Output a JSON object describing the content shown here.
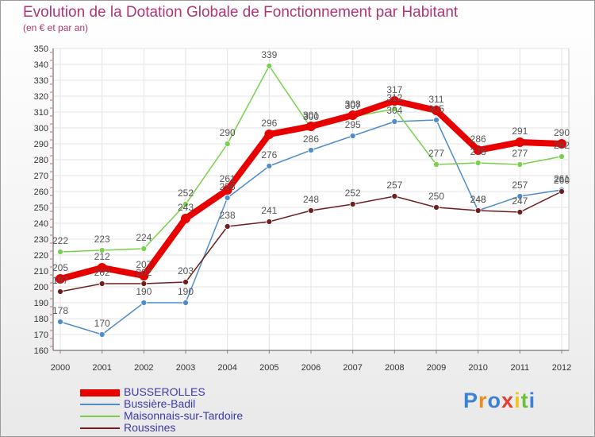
{
  "chart_data": {
    "type": "line",
    "title": "Evolution de la Dotation Globale de Fonctionnement par Habitant",
    "subtitle": "(en € et par an)",
    "categories": [
      "2000",
      "2001",
      "2002",
      "2003",
      "2004",
      "2005",
      "2006",
      "2007",
      "2008",
      "2009",
      "2010",
      "2011",
      "2012"
    ],
    "ylim": [
      160,
      350
    ],
    "yticks": [
      160,
      170,
      180,
      190,
      200,
      210,
      220,
      230,
      240,
      250,
      260,
      270,
      280,
      290,
      300,
      310,
      320,
      330,
      340,
      350
    ],
    "grid": true,
    "series": [
      {
        "name": "BUSSEROLLES",
        "color": "#e80000",
        "values": [
          205,
          212,
          207,
          243,
          261,
          296,
          301,
          308,
          317,
          311,
          286,
          291,
          290
        ]
      },
      {
        "name": "Bussière-Badil",
        "color": "#4f8dc9",
        "values": [
          178,
          170,
          190,
          190,
          256,
          276,
          286,
          295,
          304,
          305,
          248,
          257,
          261
        ]
      },
      {
        "name": "Maisonnais-sur-Tardoire",
        "color": "#78d04c",
        "values": [
          222,
          223,
          224,
          252,
          290,
          339,
          300,
          307,
          312,
          277,
          278,
          277,
          282
        ]
      },
      {
        "name": "Roussines",
        "color": "#6e1e1e",
        "values": [
          197,
          202,
          202,
          203,
          238,
          241,
          248,
          252,
          257,
          250,
          248,
          247,
          260
        ]
      }
    ]
  },
  "brand": {
    "letters": [
      "P",
      "r",
      "o",
      "x",
      "i",
      "t",
      "i"
    ],
    "colors": [
      "#3b82d6",
      "#f08a1c",
      "#3b82d6",
      "#e63b2e",
      "#f4c21b",
      "#66c23a",
      "#3b82d6"
    ]
  }
}
